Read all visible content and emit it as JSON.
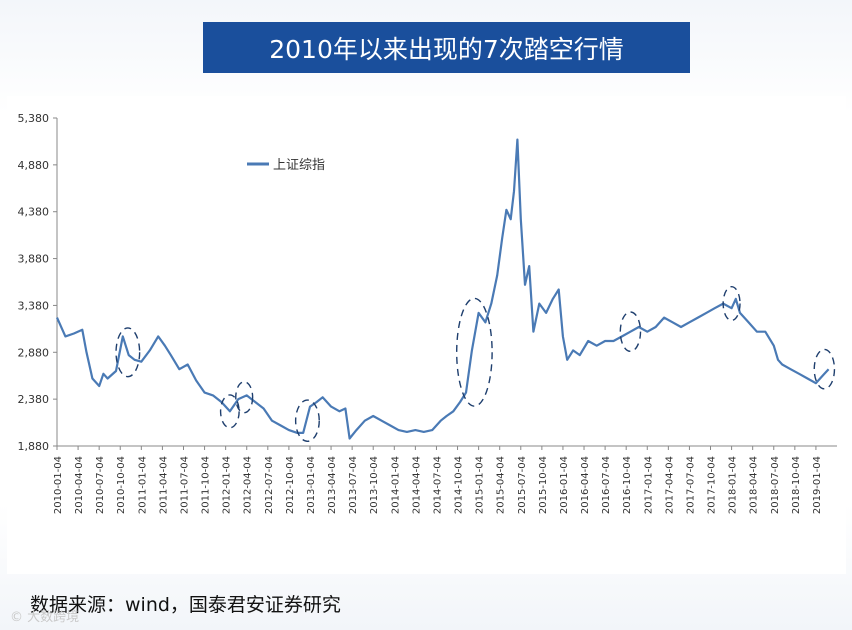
{
  "header": {
    "title": "2010年以来出现的7次踏空行情"
  },
  "footer": {
    "source": "数据来源：wind，国泰君安证券研究",
    "watermark": "© 大数跨境"
  },
  "chart_data": {
    "type": "line",
    "title": "2010年以来出现的7次踏空行情",
    "ylabel": "",
    "xlabel": "",
    "ylim": [
      1880,
      5380
    ],
    "yticks": [
      1880,
      2380,
      2880,
      3380,
      3880,
      4380,
      4880,
      5380
    ],
    "ytick_labels": [
      "1,880",
      "2,380",
      "2,880",
      "3,380",
      "3,880",
      "4,380",
      "4,880",
      "5,380"
    ],
    "xticks": [
      "2010-01-04",
      "2010-04-04",
      "2010-07-04",
      "2010-10-04",
      "2011-01-04",
      "2011-04-04",
      "2011-07-04",
      "2011-10-04",
      "2012-01-04",
      "2012-04-04",
      "2012-07-04",
      "2012-10-04",
      "2013-01-04",
      "2013-04-04",
      "2013-07-04",
      "2013-10-04",
      "2014-01-04",
      "2014-04-04",
      "2014-07-04",
      "2014-10-04",
      "2015-01-04",
      "2015-04-04",
      "2015-07-04",
      "2015-10-04",
      "2016-01-04",
      "2016-04-04",
      "2016-07-04",
      "2016-10-04",
      "2017-01-04",
      "2017-04-04",
      "2017-07-04",
      "2017-10-04",
      "2018-01-04",
      "2018-04-04",
      "2018-07-04",
      "2018-10-04",
      "2019-01-04"
    ],
    "legend": {
      "position": "top-left",
      "entries": [
        "上证综指"
      ]
    },
    "series": [
      {
        "name": "上证综指",
        "color": "#4a7ab5",
        "x": [
          2010.0,
          2010.1,
          2010.2,
          2010.3,
          2010.35,
          2010.42,
          2010.5,
          2010.55,
          2010.6,
          2010.7,
          2010.78,
          2010.85,
          2010.92,
          2011.0,
          2011.1,
          2011.2,
          2011.28,
          2011.35,
          2011.45,
          2011.55,
          2011.65,
          2011.75,
          2011.85,
          2011.95,
          2012.05,
          2012.15,
          2012.25,
          2012.35,
          2012.45,
          2012.55,
          2012.65,
          2012.75,
          2012.85,
          2012.92,
          2013.0,
          2013.08,
          2013.15,
          2013.25,
          2013.35,
          2013.42,
          2013.47,
          2013.55,
          2013.65,
          2013.75,
          2013.85,
          2013.95,
          2014.05,
          2014.15,
          2014.25,
          2014.35,
          2014.45,
          2014.55,
          2014.62,
          2014.7,
          2014.78,
          2014.85,
          2014.92,
          2015.0,
          2015.08,
          2015.15,
          2015.22,
          2015.28,
          2015.33,
          2015.38,
          2015.42,
          2015.46,
          2015.5,
          2015.55,
          2015.6,
          2015.65,
          2015.72,
          2015.8,
          2015.88,
          2015.95,
          2016.0,
          2016.05,
          2016.12,
          2016.2,
          2016.3,
          2016.4,
          2016.5,
          2016.6,
          2016.7,
          2016.8,
          2016.9,
          2017.0,
          2017.1,
          2017.2,
          2017.3,
          2017.4,
          2017.5,
          2017.6,
          2017.7,
          2017.8,
          2017.9,
          2018.0,
          2018.05,
          2018.1,
          2018.2,
          2018.3,
          2018.4,
          2018.5,
          2018.55,
          2018.6,
          2018.7,
          2018.8,
          2018.9,
          2019.0,
          2019.05,
          2019.1,
          2019.15
        ],
        "values": [
          3250,
          3050,
          3080,
          3120,
          2880,
          2600,
          2520,
          2650,
          2600,
          2680,
          3050,
          2850,
          2800,
          2780,
          2900,
          3050,
          2950,
          2850,
          2700,
          2750,
          2580,
          2450,
          2420,
          2350,
          2250,
          2380,
          2420,
          2350,
          2280,
          2150,
          2100,
          2050,
          2020,
          2020,
          2300,
          2350,
          2400,
          2300,
          2250,
          2280,
          1960,
          2050,
          2150,
          2200,
          2150,
          2100,
          2050,
          2030,
          2050,
          2030,
          2050,
          2150,
          2200,
          2250,
          2350,
          2450,
          2900,
          3300,
          3200,
          3400,
          3700,
          4100,
          4400,
          4300,
          4600,
          5150,
          4300,
          3600,
          3800,
          3100,
          3400,
          3300,
          3450,
          3550,
          3050,
          2800,
          2900,
          2850,
          3000,
          2950,
          3000,
          3000,
          3050,
          3100,
          3150,
          3100,
          3150,
          3250,
          3200,
          3150,
          3200,
          3250,
          3300,
          3350,
          3400,
          3350,
          3450,
          3300,
          3200,
          3100,
          3100,
          2950,
          2800,
          2750,
          2700,
          2650,
          2600,
          2550,
          2600,
          2650,
          2700
        ]
      }
    ],
    "annotations": [
      {
        "type": "dashed-ellipse",
        "x_center": 2010.84,
        "y_center": 2880,
        "x_span": 0.28,
        "y_span": 520
      },
      {
        "type": "dashed-ellipse",
        "x_center": 2012.05,
        "y_center": 2250,
        "x_span": 0.22,
        "y_span": 350
      },
      {
        "type": "dashed-ellipse",
        "x_center": 2012.22,
        "y_center": 2400,
        "x_span": 0.2,
        "y_span": 330
      },
      {
        "type": "dashed-ellipse",
        "x_center": 2012.97,
        "y_center": 2150,
        "x_span": 0.28,
        "y_span": 440
      },
      {
        "type": "dashed-ellipse",
        "x_center": 2014.95,
        "y_center": 2880,
        "x_span": 0.42,
        "y_span": 1150
      },
      {
        "type": "dashed-ellipse",
        "x_center": 2016.8,
        "y_center": 3100,
        "x_span": 0.24,
        "y_span": 420
      },
      {
        "type": "dashed-ellipse",
        "x_center": 2018.0,
        "y_center": 3400,
        "x_span": 0.2,
        "y_span": 360
      },
      {
        "type": "dashed-ellipse",
        "x_center": 2019.1,
        "y_center": 2700,
        "x_span": 0.24,
        "y_span": 420
      }
    ]
  }
}
